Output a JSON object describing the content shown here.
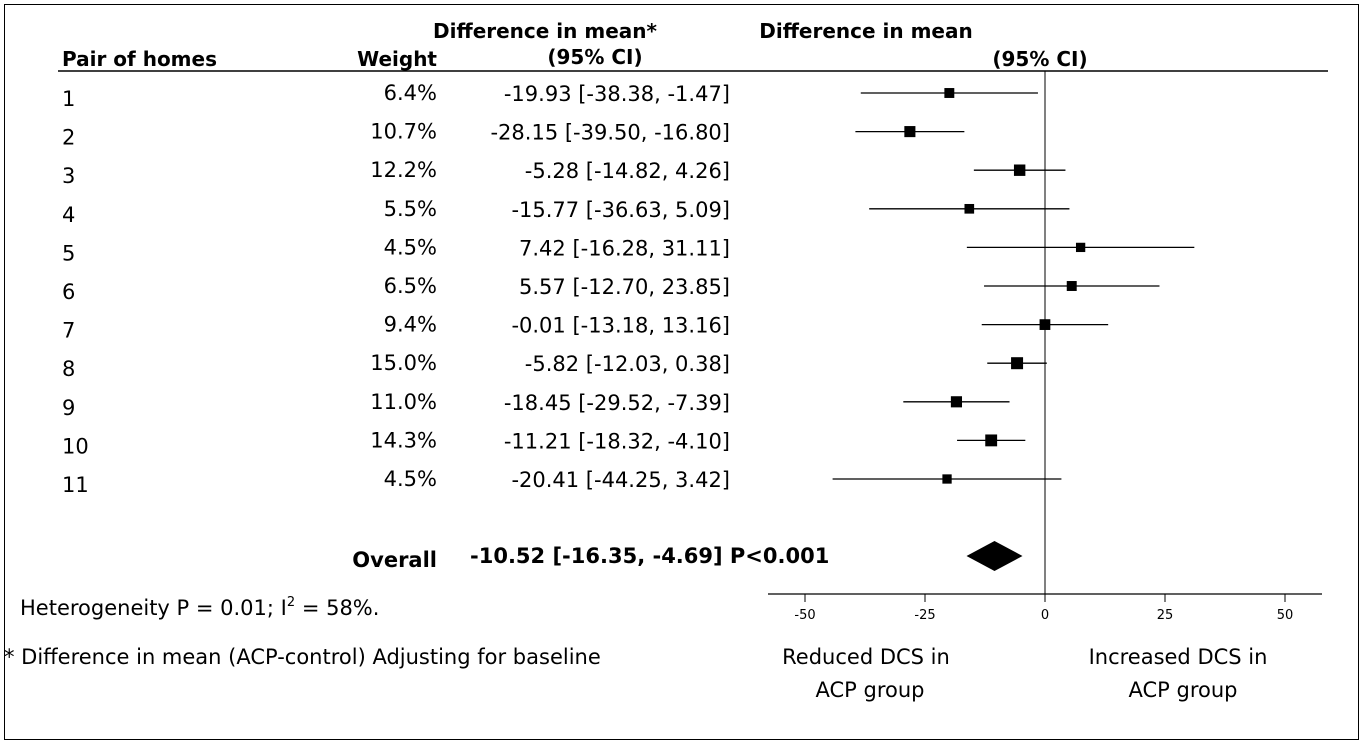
{
  "chart_data": {
    "type": "forest",
    "headers": {
      "col_pair": "Pair of homes",
      "col_weight": "Weight",
      "col_diff_line1": "Difference in mean*",
      "col_diff_line2": "(95% CI)",
      "plot_line1": "Difference in mean",
      "plot_line2": "(95% CI)"
    },
    "rows": [
      {
        "label": "1",
        "weight": "6.4%",
        "estimate": -19.93,
        "lower": -38.38,
        "upper": -1.47,
        "ci_text": "-19.93 [-38.38, -1.47]"
      },
      {
        "label": "2",
        "weight": "10.7%",
        "estimate": -28.15,
        "lower": -39.5,
        "upper": -16.8,
        "ci_text": "-28.15 [-39.50, -16.80]"
      },
      {
        "label": "3",
        "weight": "12.2%",
        "estimate": -5.28,
        "lower": -14.82,
        "upper": 4.26,
        "ci_text": "-5.28 [-14.82, 4.26]"
      },
      {
        "label": "4",
        "weight": "5.5%",
        "estimate": -15.77,
        "lower": -36.63,
        "upper": 5.09,
        "ci_text": "-15.77 [-36.63, 5.09]"
      },
      {
        "label": "5",
        "weight": "4.5%",
        "estimate": 7.42,
        "lower": -16.28,
        "upper": 31.11,
        "ci_text": "7.42 [-16.28, 31.11]"
      },
      {
        "label": "6",
        "weight": "6.5%",
        "estimate": 5.57,
        "lower": -12.7,
        "upper": 23.85,
        "ci_text": "5.57 [-12.70, 23.85]"
      },
      {
        "label": "7",
        "weight": "9.4%",
        "estimate": -0.01,
        "lower": -13.18,
        "upper": 13.16,
        "ci_text": "-0.01 [-13.18, 13.16]"
      },
      {
        "label": "8",
        "weight": "15.0%",
        "estimate": -5.82,
        "lower": -12.03,
        "upper": 0.38,
        "ci_text": "-5.82 [-12.03, 0.38]"
      },
      {
        "label": "9",
        "weight": "11.0%",
        "estimate": -18.45,
        "lower": -29.52,
        "upper": -7.39,
        "ci_text": "-18.45 [-29.52, -7.39]"
      },
      {
        "label": "10",
        "weight": "14.3%",
        "estimate": -11.21,
        "lower": -18.32,
        "upper": -4.1,
        "ci_text": "-11.21 [-18.32, -4.10]"
      },
      {
        "label": "11",
        "weight": "4.5%",
        "estimate": -20.41,
        "lower": -44.25,
        "upper": 3.42,
        "ci_text": "-20.41 [-44.25, 3.42]"
      }
    ],
    "overall": {
      "label": "Overall",
      "estimate": -10.52,
      "lower": -16.35,
      "upper": -4.69,
      "ci_text": "-10.52 [-16.35, -4.69] P<0.001"
    },
    "x_axis": {
      "range": [
        -50,
        50
      ],
      "ticks": [
        -50,
        -25,
        0,
        25,
        50
      ],
      "tick_labels": [
        "-50",
        "-25",
        "0",
        "25",
        "50"
      ]
    },
    "direction_labels": {
      "left": [
        "Reduced DCS in",
        "ACP group"
      ],
      "right": [
        "Increased DCS in",
        "ACP group"
      ]
    },
    "heterogeneity": {
      "prefix": "Heterogeneity P = 0.01; I",
      "superscript": "2",
      "suffix": " = 58%."
    },
    "footnote": "* Difference in mean (ACP-control) Adjusting for baseline"
  }
}
